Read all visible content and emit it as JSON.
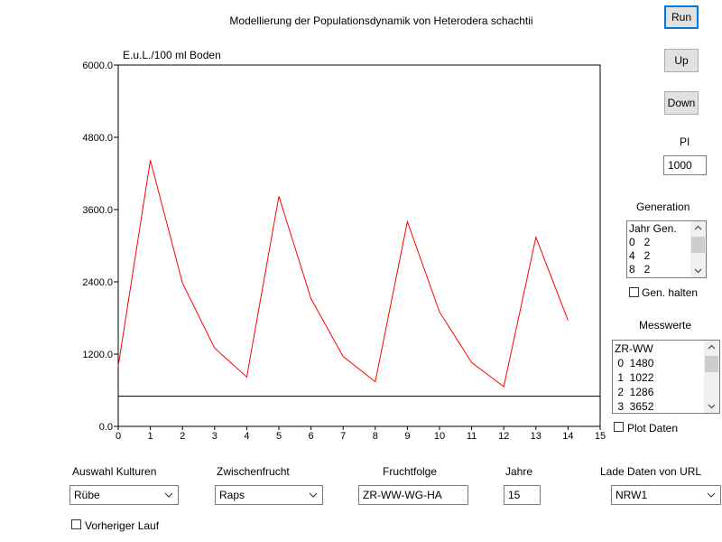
{
  "title": "Modellierung der Populationsdynamik von Heterodera schachtii",
  "buttons": {
    "run": "Run",
    "up": "Up",
    "down": "Down"
  },
  "pi": {
    "label": "PI",
    "value": "1000"
  },
  "generation": {
    "label": "Generation",
    "rows": [
      "Jahr Gen.",
      "0   2",
      "4   2",
      "8   2"
    ],
    "hold_label": "Gen. halten"
  },
  "messwerte": {
    "label": "Messwerte",
    "rows": [
      "ZR-WW",
      " 0  1480",
      " 1  1022",
      " 2  1286",
      " 3  3652"
    ],
    "plot_label": "Plot Daten"
  },
  "controls": {
    "kulturen": {
      "label": "Auswahl Kulturen",
      "value": "Rübe"
    },
    "zwischenfrucht": {
      "label": "Zwischenfrucht",
      "value": "Raps"
    },
    "fruchtfolge": {
      "label": "Fruchtfolge",
      "value": "ZR-WW-WG-HA"
    },
    "jahre": {
      "label": "Jahre",
      "value": "15"
    },
    "url": {
      "label": "Lade Daten von URL",
      "value": "NRW1"
    },
    "vorheriger": {
      "label": "Vorheriger Lauf"
    }
  },
  "chart_data": {
    "type": "line",
    "ylabel": "E.u.L./100 ml Boden",
    "ylim": [
      0,
      6000
    ],
    "xlim": [
      0,
      15
    ],
    "y_ticks": [
      "6000.0",
      "4800.0",
      "3600.0",
      "2400.0",
      "1200.0",
      "0.0"
    ],
    "y_tick_values": [
      6000,
      4800,
      3600,
      2400,
      1200,
      0
    ],
    "x_ticks": [
      "0",
      "1",
      "2",
      "3",
      "4",
      "5",
      "6",
      "7",
      "8",
      "9",
      "10",
      "11",
      "12",
      "13",
      "14",
      "15"
    ],
    "series": [
      {
        "color": "#ff0000",
        "x": [
          0,
          1,
          2,
          3,
          4,
          5,
          6,
          7,
          8,
          9,
          10,
          11,
          12,
          13,
          14
        ],
        "y": [
          1000,
          4420,
          2380,
          1300,
          820,
          3820,
          2120,
          1160,
          740,
          3400,
          1900,
          1060,
          660,
          3140,
          1760
        ]
      }
    ],
    "reference_line": {
      "y": 500,
      "color": "#000000"
    }
  }
}
